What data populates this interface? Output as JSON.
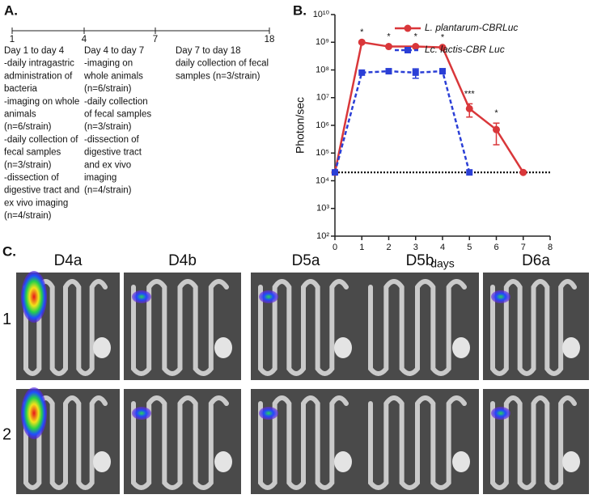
{
  "panel_a": {
    "label": "A.",
    "timeline_ticks": [
      "1",
      "4",
      "7",
      "18"
    ],
    "columns": [
      [
        "Day 1 to day 4",
        "-daily intragastric",
        " administration of",
        "bacteria",
        "-imaging on whole",
        "animals",
        "(n=6/strain)",
        "-daily collection of",
        "fecal samples",
        "(n=3/strain)",
        "-dissection of",
        "digestive tract and",
        "ex vivo imaging",
        "(n=4/strain)"
      ],
      [
        "Day 4 to day 7",
        "-imaging on",
        "whole animals",
        "(n=6/strain)",
        "-daily collection",
        "of fecal samples",
        "(n=3/strain)",
        "-dissection of",
        "digestive tract",
        "and ex vivo",
        "imaging",
        "(n=4/strain)"
      ],
      [
        "Day 7 to day 18",
        "daily collection of fecal",
        "samples (n=3/strain)"
      ]
    ]
  },
  "chart_data": {
    "type": "line",
    "panel_label": "B.",
    "x_label": "days",
    "y_label": "Photon/sec",
    "log_y": true,
    "xlim": [
      0,
      8
    ],
    "xticks": [
      0,
      1,
      2,
      3,
      4,
      5,
      6,
      7,
      8
    ],
    "ylim": [
      100,
      10000000000
    ],
    "yticks": [
      {
        "value": 100,
        "label": "10²"
      },
      {
        "value": 1000,
        "label": "10³"
      },
      {
        "value": 10000,
        "label": "10⁴"
      },
      {
        "value": 100000,
        "label": "10⁵"
      },
      {
        "value": 1000000,
        "label": "10⁶"
      },
      {
        "value": 10000000,
        "label": "10⁷"
      },
      {
        "value": 100000000,
        "label": "10⁸"
      },
      {
        "value": 1000000000,
        "label": "10⁹"
      },
      {
        "value": 10000000000,
        "label": "10¹⁰"
      }
    ],
    "hline": 20000,
    "legend": "upper right",
    "series": [
      {
        "name": "L. plantarum-CBRLuc",
        "color": "#d9373a",
        "marker": "circle",
        "dashed": false,
        "x": [
          0,
          1,
          2,
          3,
          4,
          5,
          6,
          7
        ],
        "values": [
          20000,
          1000000000,
          700000000,
          700000000,
          650000000,
          4000000,
          700000,
          20000
        ],
        "errors": [
          null,
          null,
          null,
          null,
          null,
          2000000,
          500000,
          null
        ]
      },
      {
        "name": "Lc. lactis-CBR Luc",
        "color": "#2b3fd6",
        "marker": "square",
        "dashed": true,
        "x": [
          0,
          1,
          2,
          3,
          4,
          5
        ],
        "values": [
          20000,
          80000000,
          90000000,
          80000000,
          90000000,
          20000
        ],
        "errors": [
          null,
          null,
          null,
          30000000,
          null,
          null
        ]
      }
    ],
    "annotations": [
      {
        "text": "*",
        "x": 1
      },
      {
        "text": "*",
        "x": 2
      },
      {
        "text": "*",
        "x": 3
      },
      {
        "text": "*",
        "x": 4
      },
      {
        "text": "***",
        "x": 5
      },
      {
        "text": "*",
        "x": 6
      }
    ]
  },
  "panel_c": {
    "label": "C.",
    "columns": [
      "D4a",
      "D4b",
      "D5a",
      "D5b",
      "D6a"
    ],
    "rows": [
      "1",
      "2"
    ]
  }
}
